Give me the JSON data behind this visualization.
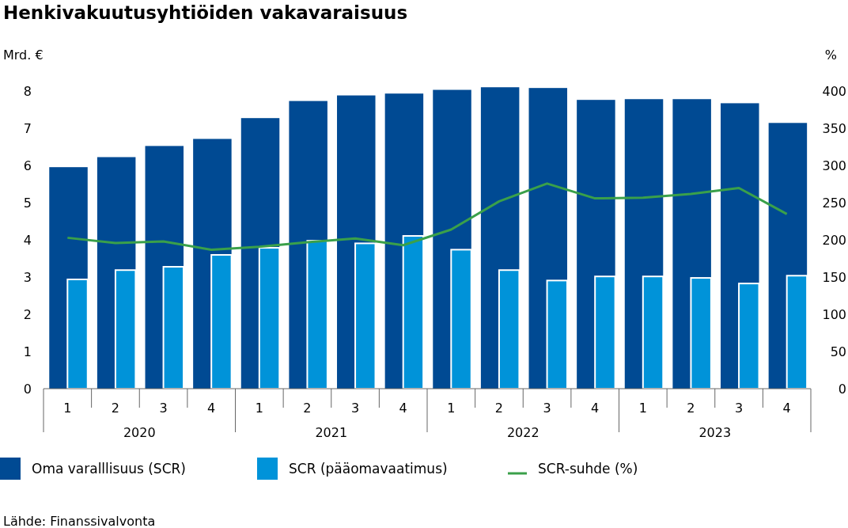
{
  "chart_data": {
    "type": "bar",
    "title": "Henkivakuutusyhtiöiden vakavaraisuus",
    "ylabel": "Mrd. €",
    "y2label": "%",
    "categories": [
      "1",
      "2",
      "3",
      "4",
      "1",
      "2",
      "3",
      "4",
      "1",
      "2",
      "3",
      "4",
      "1",
      "2",
      "3",
      "4"
    ],
    "series": [
      {
        "name": "Oma varalllisuus (SCR)",
        "color": "#004a93",
        "values": [
          5.96,
          6.23,
          6.53,
          6.72,
          7.28,
          7.74,
          7.89,
          7.94,
          8.04,
          8.11,
          8.09,
          7.77,
          7.79,
          7.79,
          7.68,
          7.15
        ]
      },
      {
        "name": "SCR (pääomavaatimus)",
        "color": "#0093d9",
        "values": [
          2.94,
          3.19,
          3.28,
          3.6,
          3.79,
          3.98,
          3.91,
          4.11,
          3.74,
          3.19,
          2.91,
          3.02,
          3.02,
          2.98,
          2.83,
          3.04
        ]
      },
      {
        "name": "SCR-suhde (%)",
        "type": "line",
        "axis": "y2",
        "color": "#3aa04a",
        "values": [
          203,
          196,
          198,
          187,
          191,
          197,
          202,
          193,
          214,
          252,
          276,
          256,
          257,
          262,
          270,
          235
        ]
      }
    ],
    "ylim": [
      0,
      8.2
    ],
    "yticks": [
      0,
      1,
      2,
      3,
      4,
      5,
      6,
      7,
      8
    ],
    "y2lim": [
      0,
      410
    ],
    "y2ticks": [
      0,
      50,
      100,
      150,
      200,
      250,
      300,
      350,
      400
    ],
    "legend": "bottom",
    "grid": false,
    "annotations": [
      "2020",
      "2021",
      "2022",
      "2023",
      "Lähde: Finanssivalvonta"
    ]
  }
}
